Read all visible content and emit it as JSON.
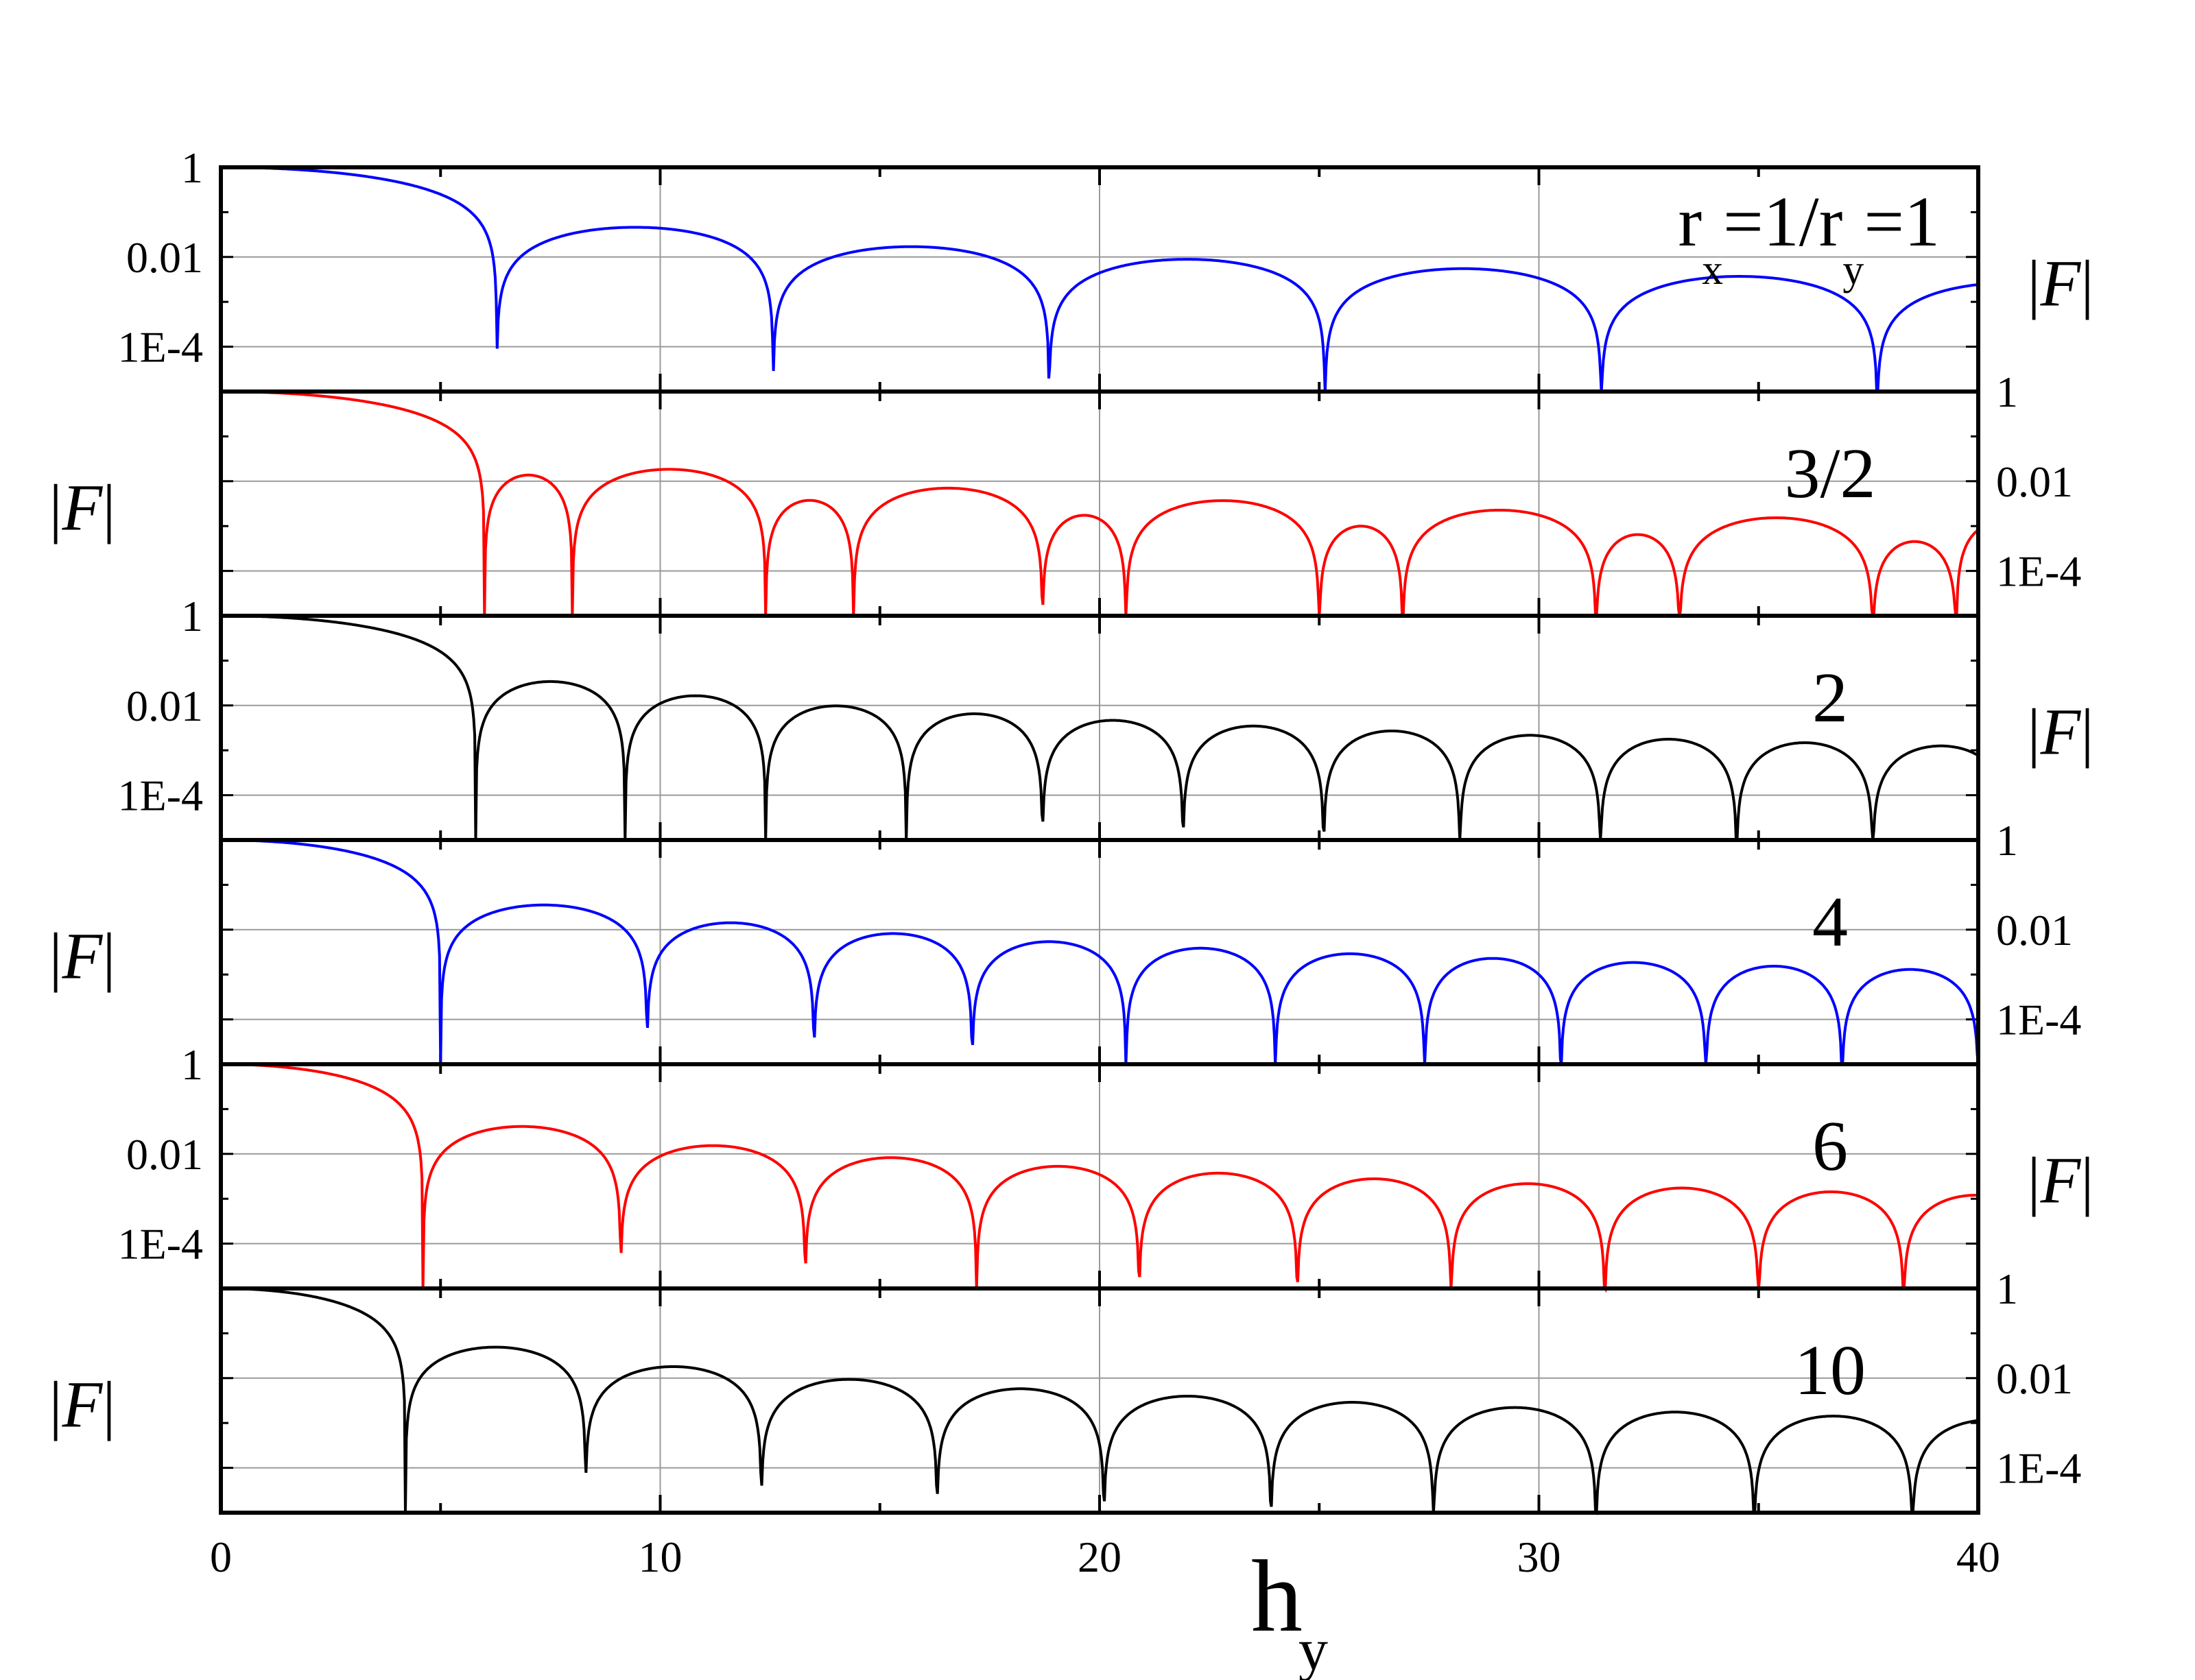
{
  "chart_data": {
    "type": "line",
    "title": "",
    "xlabel": "h",
    "xlabel_subscript": "y",
    "xlim": [
      0,
      40
    ],
    "x_ticks": [
      "0",
      "10",
      "20",
      "30",
      "40"
    ],
    "y_scale": "log",
    "ylim": [
      1e-05,
      1
    ],
    "y_ticks": [
      "1",
      "0.01",
      "1E-4"
    ],
    "ylabel_parts": [
      "|",
      "F",
      "|"
    ],
    "grid": true,
    "first_panel_label": {
      "r": "r",
      "sub_x": "x",
      "mid": "=1/r",
      "sub_y": "y",
      "end": "=1"
    },
    "panels": [
      {
        "label": "r_x=1/r_y=1",
        "ratio": 1,
        "color": "#0000ff",
        "zeros": [
          6.28,
          12.57,
          18.85,
          25.13,
          31.42,
          37.7
        ],
        "peaks": [
          0.046,
          0.017,
          0.0089,
          0.0055,
          0.0037,
          0.0027
        ]
      },
      {
        "label": "3/2",
        "ratio": 1.5,
        "color": "#ff0000",
        "zeros": [
          6.0,
          8.0,
          12.4,
          14.4,
          18.7,
          20.6,
          25.0,
          26.9,
          31.3,
          33.2,
          37.6,
          39.5
        ]
      },
      {
        "label": "2",
        "ratio": 2,
        "color": "#000000",
        "zeros": [
          5.8,
          9.2,
          12.4,
          15.6,
          18.7,
          21.9,
          25.1,
          28.2,
          31.4,
          34.5,
          37.6
        ]
      },
      {
        "label": "4",
        "ratio": 4,
        "color": "#0000ff",
        "zeros": [
          5.0,
          9.7,
          13.5,
          17.1,
          20.6,
          24.0,
          27.4,
          30.5,
          33.8,
          36.9,
          40.0
        ]
      },
      {
        "label": "6",
        "ratio": 6,
        "color": "#ff0000",
        "zeros": [
          4.6,
          9.1,
          13.3,
          17.2,
          20.9,
          24.5,
          28.0,
          31.5,
          35.0,
          38.3
        ]
      },
      {
        "label": "10",
        "ratio": 10,
        "color": "#000000",
        "zeros": [
          4.2,
          8.3,
          12.3,
          16.3,
          20.1,
          23.9,
          27.6,
          31.3,
          34.9,
          38.5
        ]
      }
    ]
  }
}
